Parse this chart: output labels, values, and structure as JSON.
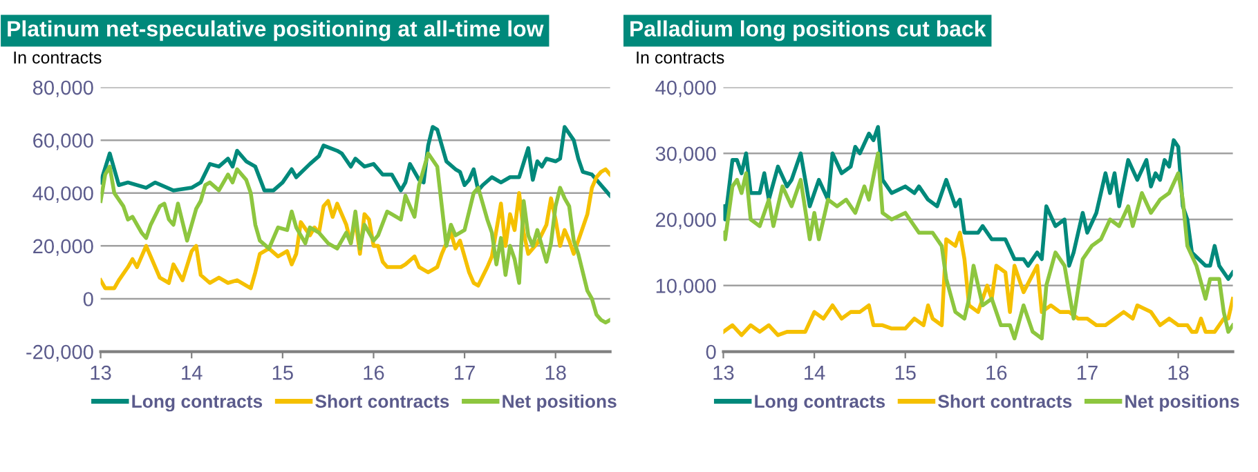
{
  "chart_data": [
    {
      "type": "line",
      "title": "Platinum net-speculative positioning at all-time low",
      "ylabel": "In contracts",
      "xlim": [
        13,
        18.6
      ],
      "xticks": [
        13,
        14,
        15,
        16,
        17,
        18
      ],
      "ylim": [
        -20000,
        80000
      ],
      "yticks": [
        {
          "value": -20000,
          "label": "-20,000"
        },
        {
          "value": 0,
          "label": "0"
        },
        {
          "value": 20000,
          "label": "20,000"
        },
        {
          "value": 40000,
          "label": "40,000"
        },
        {
          "value": 60000,
          "label": "60,000"
        },
        {
          "value": 80000,
          "label": "80,000"
        }
      ],
      "grid": "y",
      "legend": "bottom",
      "line_style": "solid",
      "marker": "none",
      "series": [
        {
          "name": "Long contracts",
          "color": "#00897b",
          "x": [
            13.0,
            13.1,
            13.2,
            13.3,
            13.5,
            13.6,
            13.8,
            14.0,
            14.1,
            14.2,
            14.3,
            14.4,
            14.45,
            14.5,
            14.6,
            14.7,
            14.8,
            14.9,
            15.0,
            15.1,
            15.15,
            15.3,
            15.4,
            15.45,
            15.6,
            15.65,
            15.75,
            15.8,
            15.9,
            16.0,
            16.1,
            16.2,
            16.3,
            16.35,
            16.4,
            16.5,
            16.55,
            16.6,
            16.65,
            16.7,
            16.8,
            16.9,
            16.95,
            17.0,
            17.05,
            17.1,
            17.15,
            17.2,
            17.3,
            17.4,
            17.5,
            17.6,
            17.7,
            17.75,
            17.8,
            17.85,
            17.9,
            18.0,
            18.05,
            18.1,
            18.2,
            18.25,
            18.3,
            18.4,
            18.5,
            18.55,
            18.6
          ],
          "values": [
            44000,
            55000,
            43000,
            44000,
            42000,
            44000,
            41000,
            42000,
            44000,
            51000,
            50000,
            53000,
            50000,
            56000,
            52000,
            50000,
            41000,
            41000,
            44000,
            49000,
            46000,
            51000,
            54000,
            58000,
            56000,
            55000,
            50000,
            53000,
            50000,
            51000,
            47000,
            47000,
            41000,
            44000,
            51000,
            45000,
            44000,
            58000,
            65000,
            64000,
            52000,
            49000,
            48000,
            43000,
            45000,
            49000,
            41000,
            43000,
            46000,
            44000,
            46000,
            46000,
            57000,
            45000,
            52000,
            50000,
            53000,
            52000,
            53000,
            65000,
            60000,
            53000,
            48000,
            47000,
            43000,
            41000,
            39000
          ]
        },
        {
          "name": "Short contracts",
          "color": "#f5c000",
          "x": [
            13.0,
            13.05,
            13.15,
            13.2,
            13.3,
            13.35,
            13.4,
            13.5,
            13.55,
            13.65,
            13.75,
            13.8,
            13.9,
            14.0,
            14.05,
            14.1,
            14.2,
            14.3,
            14.4,
            14.5,
            14.6,
            14.65,
            14.7,
            14.75,
            14.85,
            14.95,
            15.05,
            15.1,
            15.15,
            15.2,
            15.3,
            15.35,
            15.4,
            15.45,
            15.5,
            15.55,
            15.6,
            15.7,
            15.75,
            15.8,
            15.85,
            15.9,
            15.95,
            16.0,
            16.05,
            16.1,
            16.15,
            16.3,
            16.35,
            16.45,
            16.5,
            16.55,
            16.6,
            16.7,
            16.75,
            16.8,
            16.85,
            16.9,
            16.95,
            17.05,
            17.1,
            17.15,
            17.25,
            17.3,
            17.4,
            17.45,
            17.5,
            17.55,
            17.6,
            17.65,
            17.7,
            17.8,
            17.9,
            17.95,
            18.0,
            18.05,
            18.1,
            18.15,
            18.2,
            18.3,
            18.35,
            18.4,
            18.45,
            18.5,
            18.55,
            18.6
          ],
          "values": [
            7000,
            4000,
            4000,
            7000,
            12000,
            15000,
            12000,
            20000,
            16000,
            8000,
            6000,
            13000,
            7000,
            18000,
            20000,
            9000,
            6000,
            8000,
            6000,
            7000,
            5000,
            4000,
            10000,
            17000,
            19000,
            16000,
            18000,
            13000,
            17000,
            29000,
            24000,
            27000,
            25000,
            35000,
            37000,
            31000,
            36000,
            28000,
            21000,
            30000,
            17000,
            32000,
            30000,
            20000,
            20000,
            14000,
            12000,
            12000,
            13000,
            16000,
            12000,
            11000,
            10000,
            12000,
            17000,
            21000,
            25000,
            19000,
            22000,
            10000,
            6000,
            5000,
            12000,
            16000,
            36000,
            20000,
            32000,
            26000,
            40000,
            25000,
            17000,
            21000,
            28000,
            38000,
            30000,
            20000,
            26000,
            22000,
            17000,
            27000,
            32000,
            42000,
            46000,
            48000,
            49000,
            47000
          ]
        },
        {
          "name": "Net positions",
          "color": "#8dc63f",
          "x": [
            13.0,
            13.05,
            13.1,
            13.15,
            13.25,
            13.3,
            13.35,
            13.45,
            13.5,
            13.55,
            13.65,
            13.7,
            13.75,
            13.8,
            13.85,
            13.95,
            14.05,
            14.1,
            14.15,
            14.2,
            14.3,
            14.4,
            14.45,
            14.5,
            14.6,
            14.65,
            14.7,
            14.75,
            14.85,
            14.95,
            15.05,
            15.1,
            15.15,
            15.25,
            15.3,
            15.4,
            15.5,
            15.6,
            15.7,
            15.75,
            15.8,
            15.85,
            15.9,
            16.0,
            16.05,
            16.15,
            16.2,
            16.3,
            16.35,
            16.45,
            16.5,
            16.6,
            16.7,
            16.75,
            16.8,
            16.85,
            16.9,
            17.0,
            17.05,
            17.1,
            17.15,
            17.25,
            17.3,
            17.35,
            17.4,
            17.45,
            17.5,
            17.55,
            17.6,
            17.65,
            17.7,
            17.75,
            17.8,
            17.9,
            17.95,
            18.0,
            18.05,
            18.1,
            18.15,
            18.2,
            18.25,
            18.35,
            18.4,
            18.45,
            18.5,
            18.55,
            18.6
          ],
          "values": [
            37000,
            47000,
            50000,
            40000,
            35000,
            30000,
            31000,
            25000,
            23000,
            28000,
            35000,
            36000,
            30000,
            28000,
            36000,
            22000,
            34000,
            37000,
            43000,
            44000,
            41000,
            47000,
            44000,
            49000,
            45000,
            40000,
            28000,
            22000,
            19000,
            27000,
            26000,
            33000,
            27000,
            21000,
            27000,
            25000,
            21000,
            19000,
            25000,
            21000,
            33000,
            19000,
            28000,
            22000,
            24000,
            33000,
            32000,
            30000,
            39000,
            31000,
            43000,
            55000,
            50000,
            35000,
            20000,
            28000,
            24000,
            26000,
            33000,
            40000,
            42000,
            30000,
            25000,
            13000,
            23000,
            9000,
            20000,
            15000,
            6000,
            37000,
            24000,
            20000,
            26000,
            14000,
            21000,
            35000,
            42000,
            38000,
            35000,
            22000,
            17000,
            3000,
            0,
            -6000,
            -8000,
            -9000,
            -8000
          ]
        }
      ]
    },
    {
      "type": "line",
      "title": "Palladium long positions cut back",
      "ylabel": "In contracts",
      "xlim": [
        13,
        18.6
      ],
      "xticks": [
        13,
        14,
        15,
        16,
        17,
        18
      ],
      "ylim": [
        0,
        40000
      ],
      "yticks": [
        {
          "value": 0,
          "label": "0"
        },
        {
          "value": 10000,
          "label": "10,000"
        },
        {
          "value": 20000,
          "label": "20,000"
        },
        {
          "value": 30000,
          "label": "30,000"
        },
        {
          "value": 40000,
          "label": "40,000"
        }
      ],
      "grid": "y",
      "legend": "bottom",
      "line_style": "solid",
      "marker": "none",
      "series": [
        {
          "name": "Long contracts",
          "color": "#00897b",
          "x": [
            13.0,
            13.02,
            13.1,
            13.15,
            13.2,
            13.25,
            13.3,
            13.4,
            13.45,
            13.5,
            13.6,
            13.7,
            13.75,
            13.85,
            13.95,
            14.05,
            14.15,
            14.2,
            14.3,
            14.4,
            14.45,
            14.5,
            14.6,
            14.65,
            14.7,
            14.75,
            14.85,
            15.0,
            15.1,
            15.15,
            15.25,
            15.35,
            15.45,
            15.55,
            15.6,
            15.65,
            15.8,
            15.85,
            15.95,
            16.1,
            16.2,
            16.3,
            16.35,
            16.45,
            16.5,
            16.55,
            16.65,
            16.75,
            16.8,
            16.85,
            16.95,
            17.0,
            17.1,
            17.2,
            17.25,
            17.3,
            17.35,
            17.45,
            17.55,
            17.65,
            17.7,
            17.75,
            17.8,
            17.85,
            17.9,
            17.95,
            18.0,
            18.05,
            18.1,
            18.15,
            18.3,
            18.35,
            18.4,
            18.45,
            18.55,
            18.6
          ],
          "values": [
            22000,
            20000,
            29000,
            29000,
            27000,
            30000,
            24000,
            24000,
            27000,
            23000,
            28000,
            25000,
            26000,
            30000,
            22000,
            26000,
            23000,
            30000,
            27000,
            28000,
            31000,
            30000,
            33000,
            32000,
            34000,
            26000,
            24000,
            25000,
            24000,
            25000,
            23000,
            22000,
            26000,
            22000,
            23000,
            18000,
            18000,
            19000,
            17000,
            17000,
            14000,
            14000,
            13000,
            15000,
            14000,
            22000,
            19000,
            20000,
            13000,
            15000,
            21000,
            18000,
            21000,
            27000,
            24000,
            27000,
            22000,
            29000,
            26000,
            29000,
            25000,
            27000,
            26000,
            29000,
            28000,
            32000,
            31000,
            22000,
            20000,
            15000,
            13000,
            13000,
            16000,
            13000,
            11000,
            12000
          ]
        },
        {
          "name": "Short contracts",
          "color": "#f5c000",
          "x": [
            13.0,
            13.1,
            13.2,
            13.3,
            13.4,
            13.5,
            13.6,
            13.7,
            13.8,
            13.9,
            14.0,
            14.1,
            14.2,
            14.3,
            14.4,
            14.5,
            14.6,
            14.65,
            14.75,
            14.85,
            15.0,
            15.1,
            15.2,
            15.25,
            15.3,
            15.4,
            15.45,
            15.55,
            15.6,
            15.65,
            15.7,
            15.8,
            15.9,
            15.95,
            16.0,
            16.1,
            16.15,
            16.2,
            16.3,
            16.45,
            16.5,
            16.6,
            16.7,
            16.8,
            16.9,
            17.0,
            17.1,
            17.2,
            17.3,
            17.4,
            17.5,
            17.55,
            17.7,
            17.8,
            17.9,
            18.0,
            18.1,
            18.15,
            18.2,
            18.25,
            18.3,
            18.4,
            18.5,
            18.55,
            18.6
          ],
          "values": [
            3000,
            4000,
            2500,
            4000,
            3000,
            4000,
            2500,
            3000,
            3000,
            3000,
            6000,
            5000,
            7000,
            5000,
            6000,
            6000,
            7000,
            4000,
            4000,
            3500,
            3500,
            5000,
            4000,
            7000,
            5000,
            4000,
            17000,
            16000,
            18000,
            14000,
            7000,
            6000,
            10000,
            8000,
            13000,
            12000,
            6000,
            13000,
            9000,
            13000,
            6000,
            7000,
            6000,
            6000,
            5000,
            5000,
            4000,
            4000,
            5000,
            6000,
            5000,
            7000,
            6000,
            4000,
            5000,
            4000,
            4000,
            3000,
            3000,
            5000,
            3000,
            3000,
            5000,
            5000,
            8000
          ]
        },
        {
          "name": "Net positions",
          "color": "#8dc63f",
          "x": [
            13.0,
            13.02,
            13.1,
            13.15,
            13.2,
            13.25,
            13.3,
            13.4,
            13.5,
            13.55,
            13.65,
            13.75,
            13.85,
            13.95,
            14.0,
            14.05,
            14.15,
            14.25,
            14.35,
            14.45,
            14.55,
            14.6,
            14.7,
            14.75,
            14.85,
            15.0,
            15.15,
            15.3,
            15.4,
            15.45,
            15.55,
            15.65,
            15.7,
            15.75,
            15.85,
            15.95,
            16.05,
            16.15,
            16.2,
            16.3,
            16.4,
            16.5,
            16.55,
            16.65,
            16.75,
            16.85,
            16.95,
            17.05,
            17.15,
            17.25,
            17.35,
            17.45,
            17.5,
            17.6,
            17.7,
            17.8,
            17.9,
            18.0,
            18.05,
            18.1,
            18.2,
            18.3,
            18.35,
            18.45,
            18.5,
            18.55,
            18.6
          ],
          "values": [
            18000,
            17000,
            25000,
            26000,
            24000,
            27000,
            20000,
            19000,
            23000,
            19000,
            25000,
            22000,
            26000,
            17000,
            21000,
            17000,
            23000,
            22000,
            23000,
            21000,
            25000,
            23000,
            30000,
            21000,
            20000,
            21000,
            18000,
            18000,
            16000,
            11000,
            6000,
            5000,
            8000,
            13000,
            7000,
            8000,
            4000,
            4000,
            2000,
            7000,
            3000,
            2000,
            10000,
            15000,
            13000,
            5000,
            14000,
            16000,
            17000,
            20000,
            19000,
            22000,
            19000,
            24000,
            21000,
            23000,
            24000,
            27000,
            23000,
            16000,
            13000,
            8000,
            11000,
            11000,
            6000,
            3000,
            4000
          ]
        }
      ]
    }
  ]
}
